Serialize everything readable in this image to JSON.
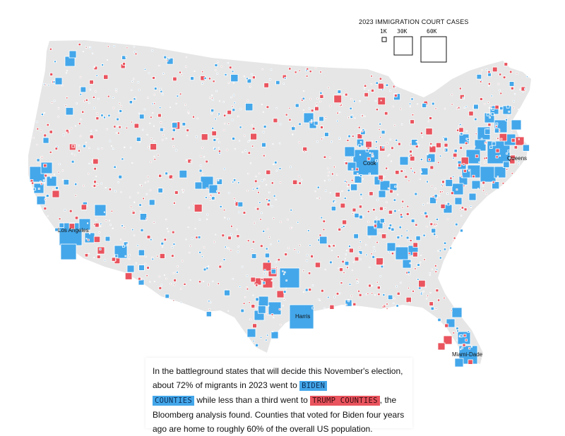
{
  "legend": {
    "title": "2023 IMMIGRATION COURT CASES",
    "size_labels": [
      "1K",
      "30K",
      "60K"
    ],
    "size_values": [
      1000,
      30000,
      60000
    ]
  },
  "colors": {
    "land": "#e6e6e6",
    "biden": "#44a7ea",
    "trump": "#e9545e",
    "outline": "#ffffff"
  },
  "county_labels": [
    "Cook",
    "Queens",
    "Los Angeles",
    "Harris",
    "Miami-Dade"
  ],
  "caption": {
    "part1": "In the battleground states that will decide this November's election, about 72% of migrants in 2023 went to ",
    "biden_tag_1": "BIDEN",
    "biden_tag_2": "COUNTIES",
    "part2": " while less than a third went to ",
    "trump_tag": "TRUMP COUNTIES",
    "part3": ", the Bloomberg analysis found. Counties that voted for Biden four years ago are home to roughly 60% of the overall US population."
  }
}
